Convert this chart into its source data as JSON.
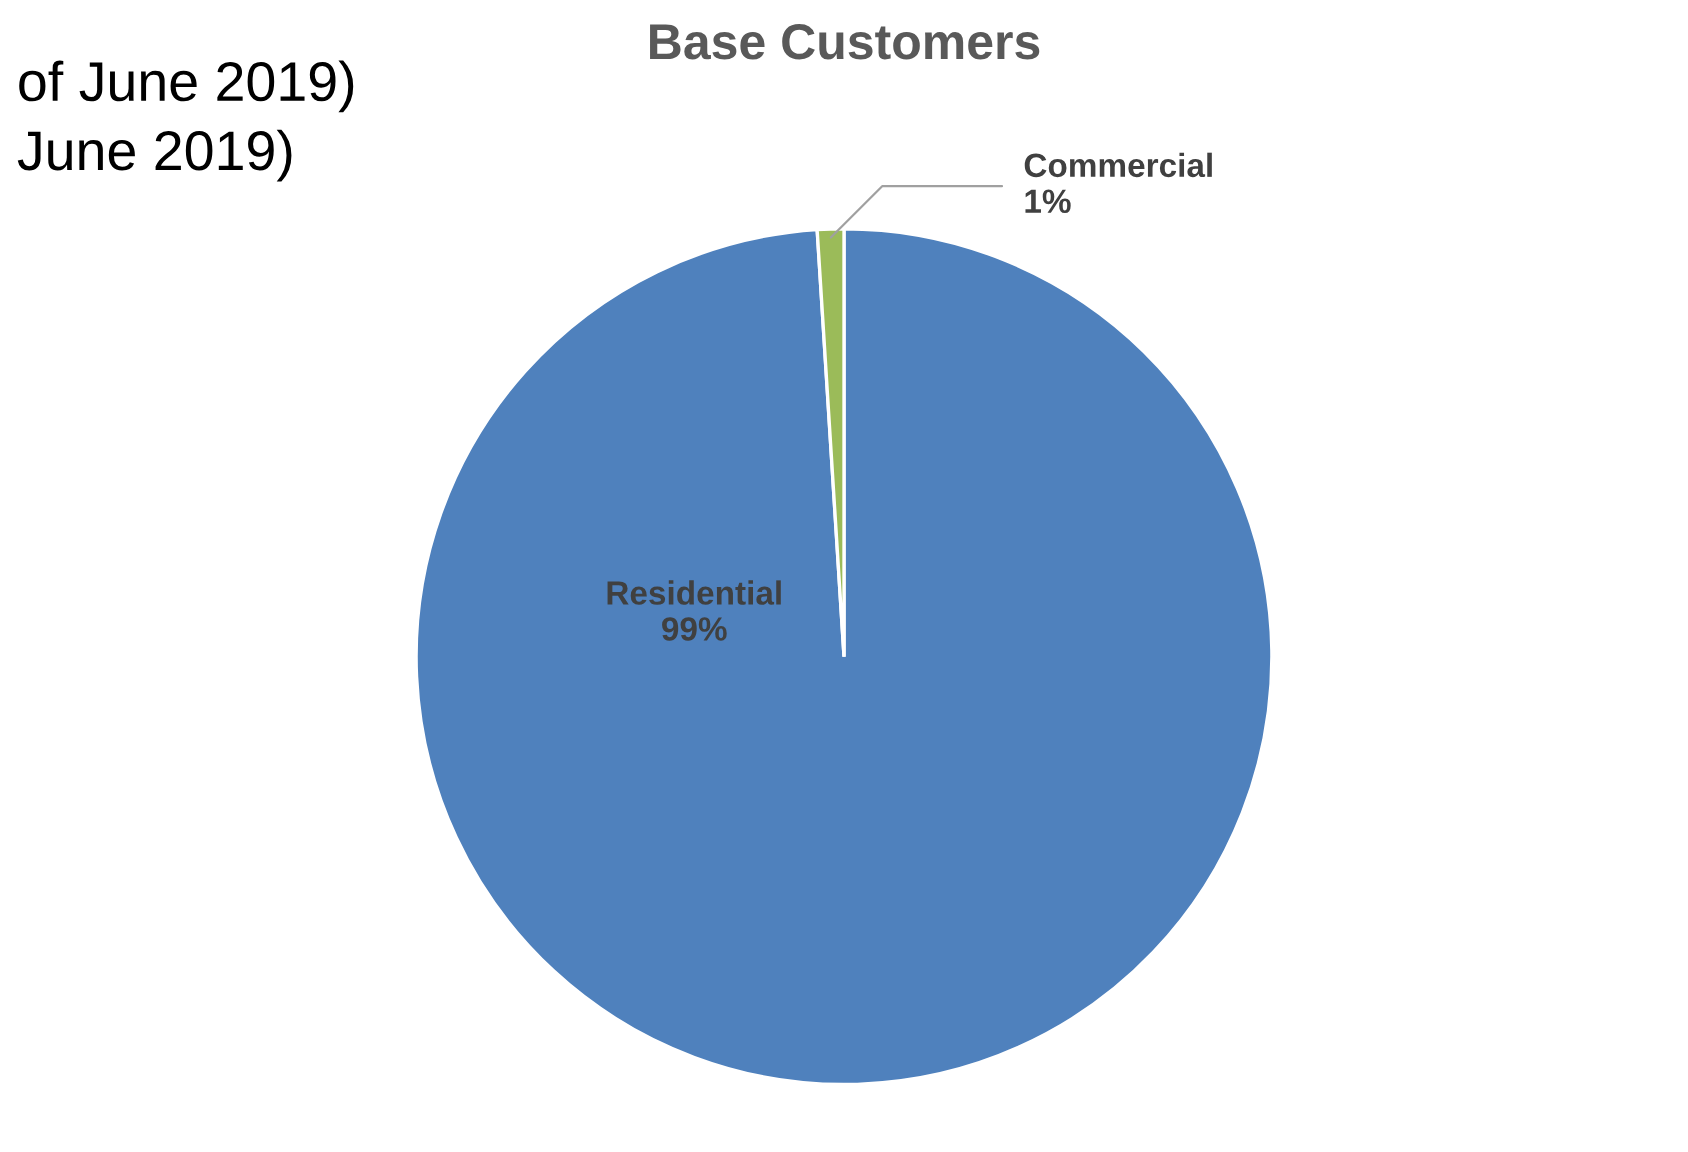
{
  "chart_data": {
    "type": "pie",
    "title": "Base Customers",
    "categories": [
      "Residential",
      "Commercial"
    ],
    "values": [
      99,
      1
    ],
    "colors": [
      "#4f81bd",
      "#9bbb59"
    ],
    "value_labels": [
      "99%",
      "1%"
    ],
    "annotations": [
      "of June 2019)",
      "June 2019)"
    ],
    "legend": false
  }
}
